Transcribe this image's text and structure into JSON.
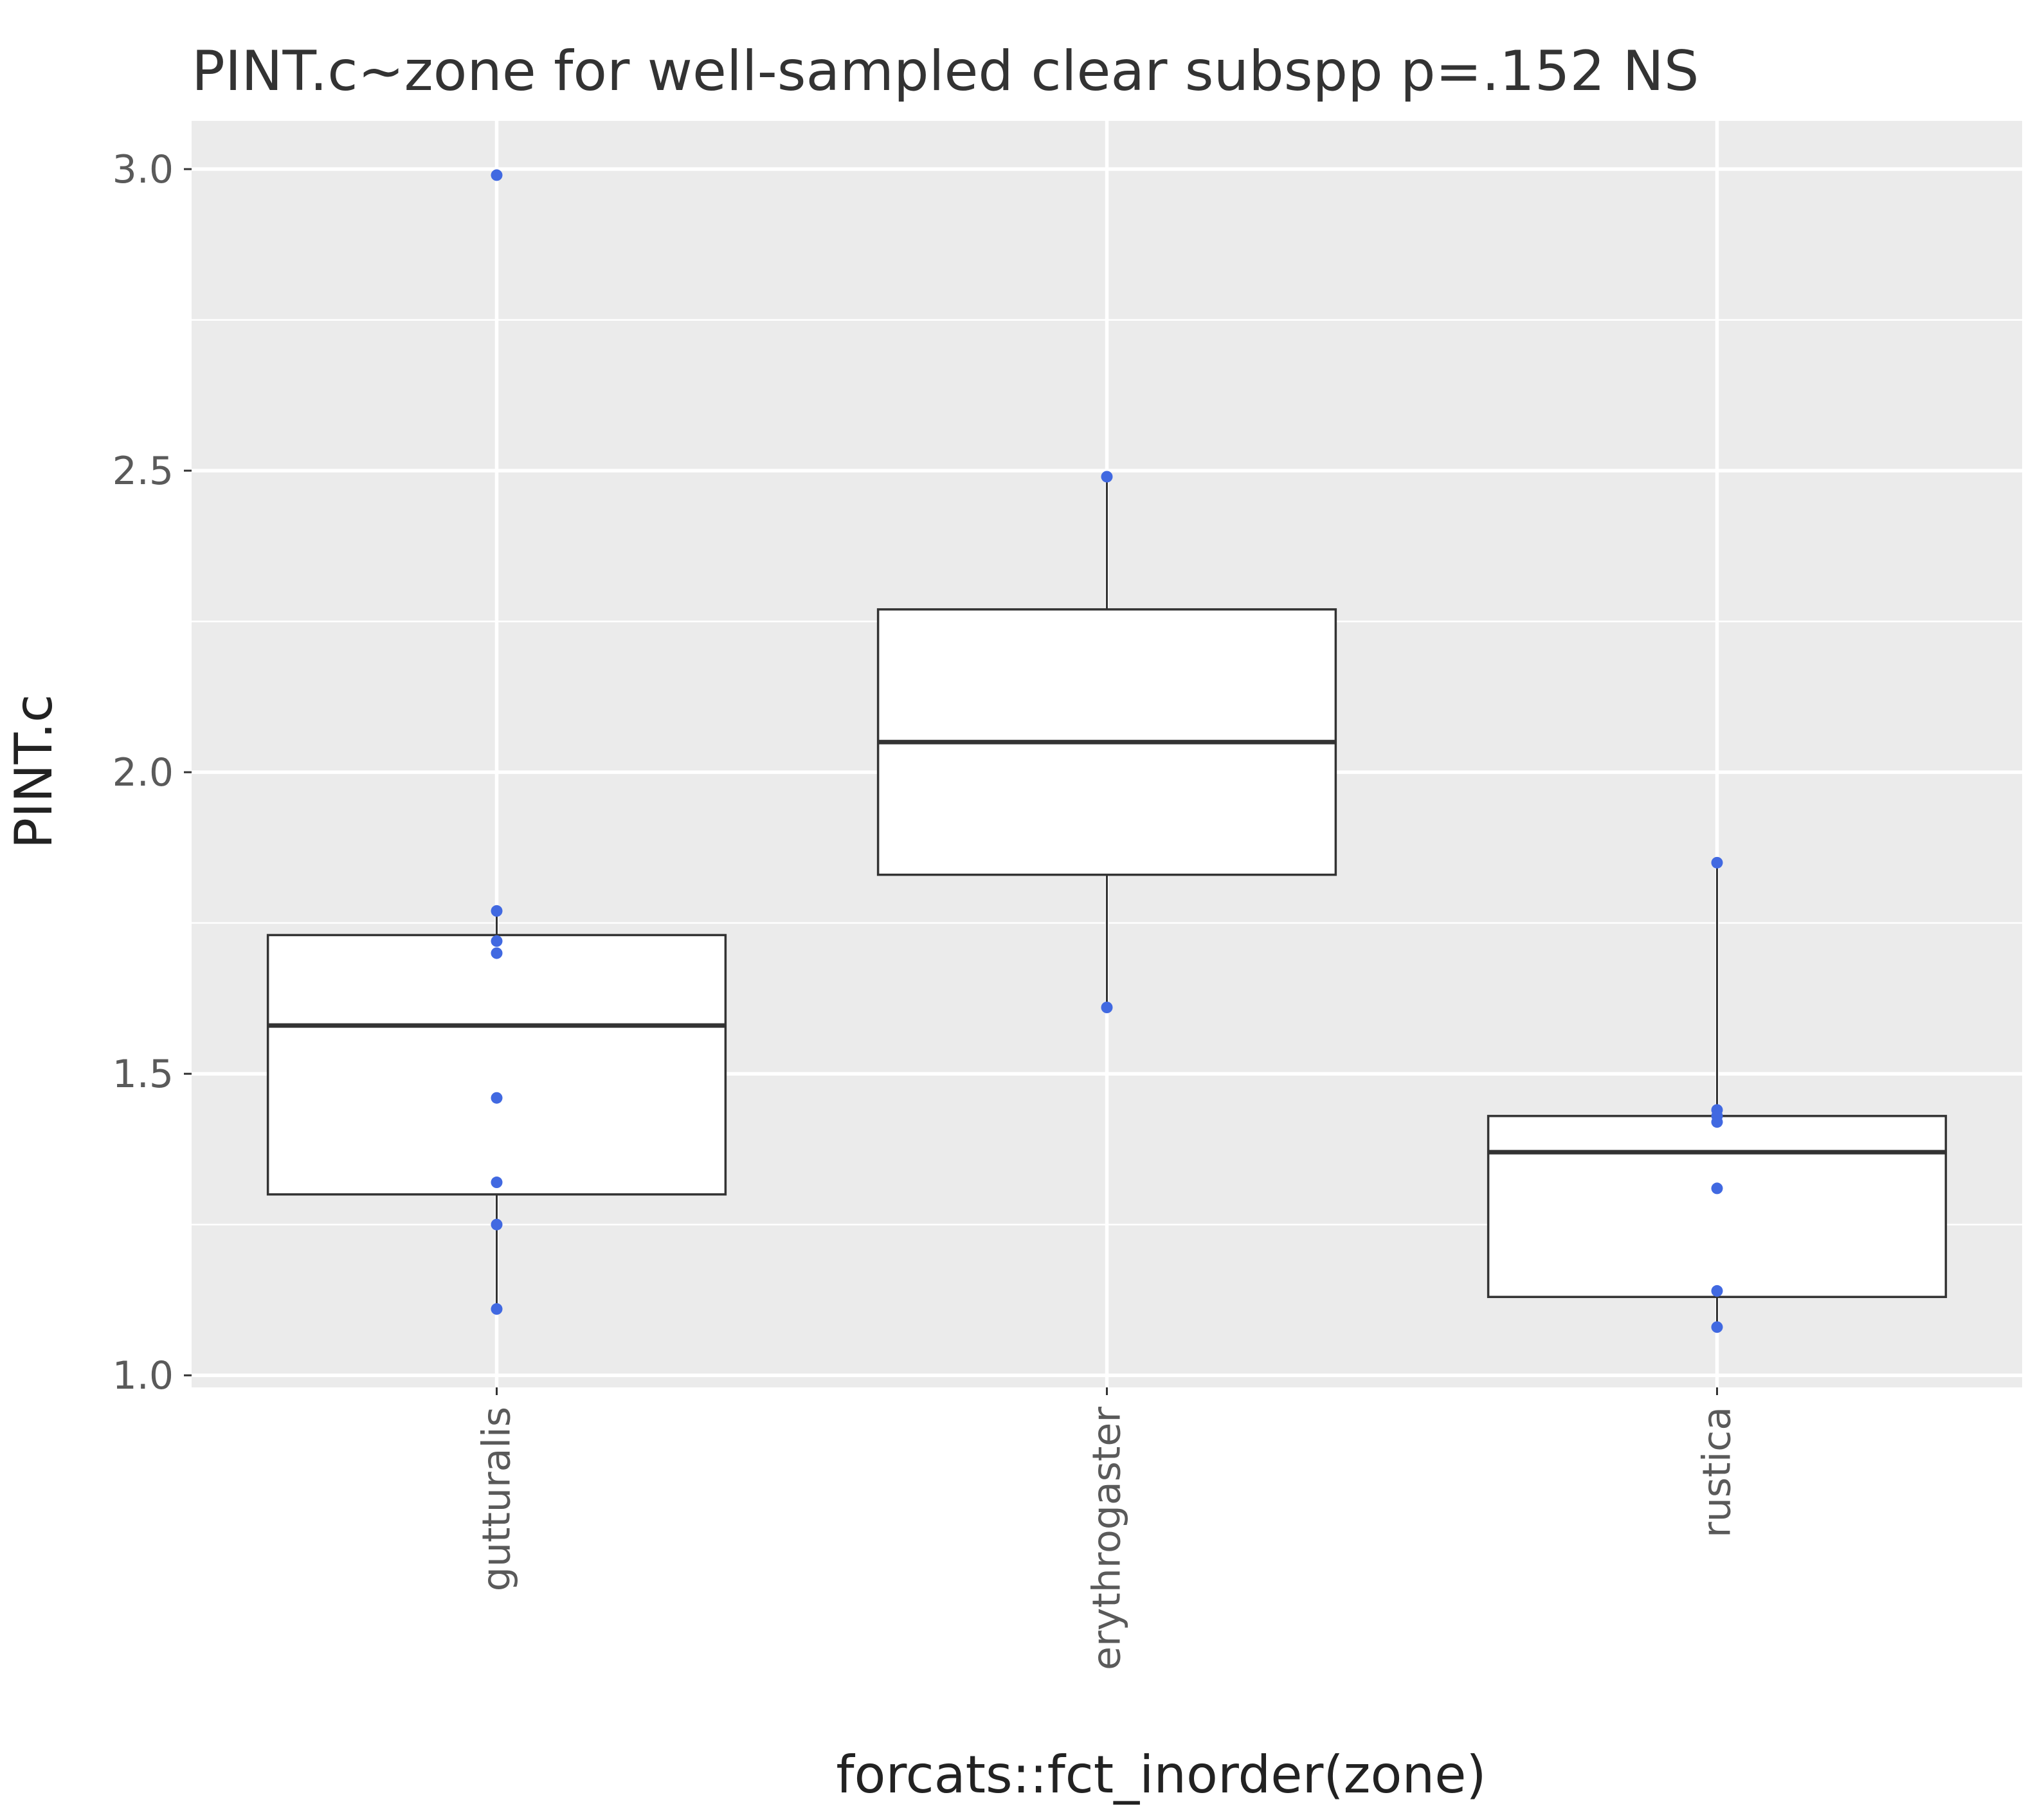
{
  "chart_data": {
    "type": "box",
    "title": "PINT.c~zone for well-sampled clear subspp p=.152 NS",
    "xlabel": "forcats::fct_inorder(zone)",
    "ylabel": "PINT.c",
    "ylim": [
      0.98,
      3.08
    ],
    "yticks": [
      "1.0",
      "1.5",
      "2.0",
      "2.5",
      "3.0"
    ],
    "categories": [
      "gutturalis",
      "erythrogaster",
      "rustica"
    ],
    "boxes": [
      {
        "name": "gutturalis",
        "q1": 1.3,
        "median": 1.58,
        "q3": 1.73,
        "whisker_low": 1.11,
        "whisker_high": 1.77,
        "outliers": [
          2.99
        ]
      },
      {
        "name": "erythrogaster",
        "q1": 1.83,
        "median": 2.05,
        "q3": 2.27,
        "whisker_low": 1.61,
        "whisker_high": 2.49,
        "outliers": []
      },
      {
        "name": "rustica",
        "q1": 1.13,
        "median": 1.37,
        "q3": 1.43,
        "whisker_low": 1.08,
        "whisker_high": 1.85,
        "outliers": []
      }
    ],
    "points": [
      {
        "category": "gutturalis",
        "values": [
          2.99,
          1.77,
          1.72,
          1.7,
          1.46,
          1.32,
          1.25,
          1.11
        ]
      },
      {
        "category": "erythrogaster",
        "values": [
          2.49,
          1.61
        ]
      },
      {
        "category": "rustica",
        "values": [
          1.85,
          1.44,
          1.43,
          1.42,
          1.31,
          1.14,
          1.08
        ]
      }
    ],
    "grid": true,
    "colors": {
      "panel": "#ebebeb",
      "grid": "#ffffff",
      "box_fill": "#ffffff",
      "box_stroke": "#333333",
      "point": "#4169e1",
      "text": "#333333",
      "tick_text": "#5a5a5a"
    }
  }
}
